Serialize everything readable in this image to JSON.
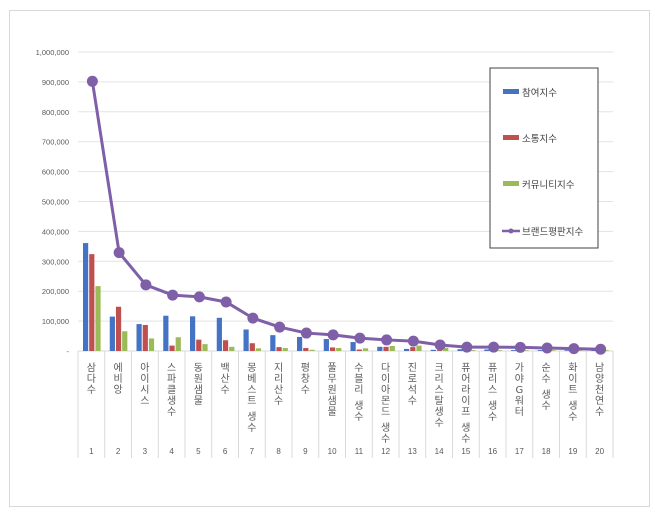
{
  "chart_data": {
    "type": "bar+line",
    "title": "",
    "xlabel": "",
    "ylabel": "",
    "ylim": [
      0,
      1000000
    ],
    "yticks": [
      "-",
      "100,000",
      "200,000",
      "300,000",
      "400,000",
      "500,000",
      "600,000",
      "700,000",
      "800,000",
      "900,000",
      "1,000,000"
    ],
    "grid": true,
    "legend_position": "right-top",
    "ranks": [
      "1",
      "2",
      "3",
      "4",
      "5",
      "6",
      "7",
      "8",
      "9",
      "10",
      "11",
      "12",
      "13",
      "14",
      "15",
      "16",
      "17",
      "18",
      "19",
      "20"
    ],
    "categories": [
      "삼다수",
      "에비앙",
      "아이시스",
      "스파클생수",
      "동원샘물",
      "백산수",
      "몽베스트 생수",
      "지리산수",
      "평창수",
      "풀무원샘물",
      "수블리 생수",
      "다이아몬드 생수",
      "진로석수",
      "크리스탈생수",
      "퓨어라이프 생수",
      "퓨리스 생수",
      "가야G워터",
      "순수 생수",
      "화이트 생수",
      "남양천연수"
    ],
    "series": [
      {
        "name": "참여지수",
        "type": "bar",
        "color": "#4472c4",
        "values": [
          361000,
          115000,
          90000,
          118000,
          116000,
          111000,
          72000,
          53000,
          47000,
          40000,
          30000,
          14000,
          7000,
          4000,
          6000,
          5000,
          3000,
          3000,
          2000,
          2000
        ]
      },
      {
        "name": "소통지수",
        "type": "bar",
        "color": "#c0504d",
        "values": [
          324000,
          148000,
          87000,
          18000,
          38000,
          36000,
          26000,
          13000,
          10000,
          12000,
          5000,
          14000,
          13000,
          3000,
          2000,
          2000,
          1000,
          1000,
          1000,
          1000
        ]
      },
      {
        "name": "커뮤니티지수",
        "type": "bar",
        "color": "#9bbb59",
        "values": [
          217000,
          66000,
          42000,
          46000,
          23000,
          14000,
          9000,
          10000,
          4000,
          10000,
          9000,
          17000,
          18000,
          11000,
          3000,
          2000,
          2000,
          2000,
          1000,
          1000
        ]
      },
      {
        "name": "브랜드평판지수",
        "type": "line",
        "color": "#7f5fa8",
        "values": [
          902000,
          329000,
          221000,
          187000,
          181000,
          164000,
          110000,
          80000,
          60000,
          54000,
          43000,
          37000,
          33000,
          20000,
          13000,
          13000,
          12000,
          10000,
          8000,
          6000
        ]
      }
    ]
  }
}
